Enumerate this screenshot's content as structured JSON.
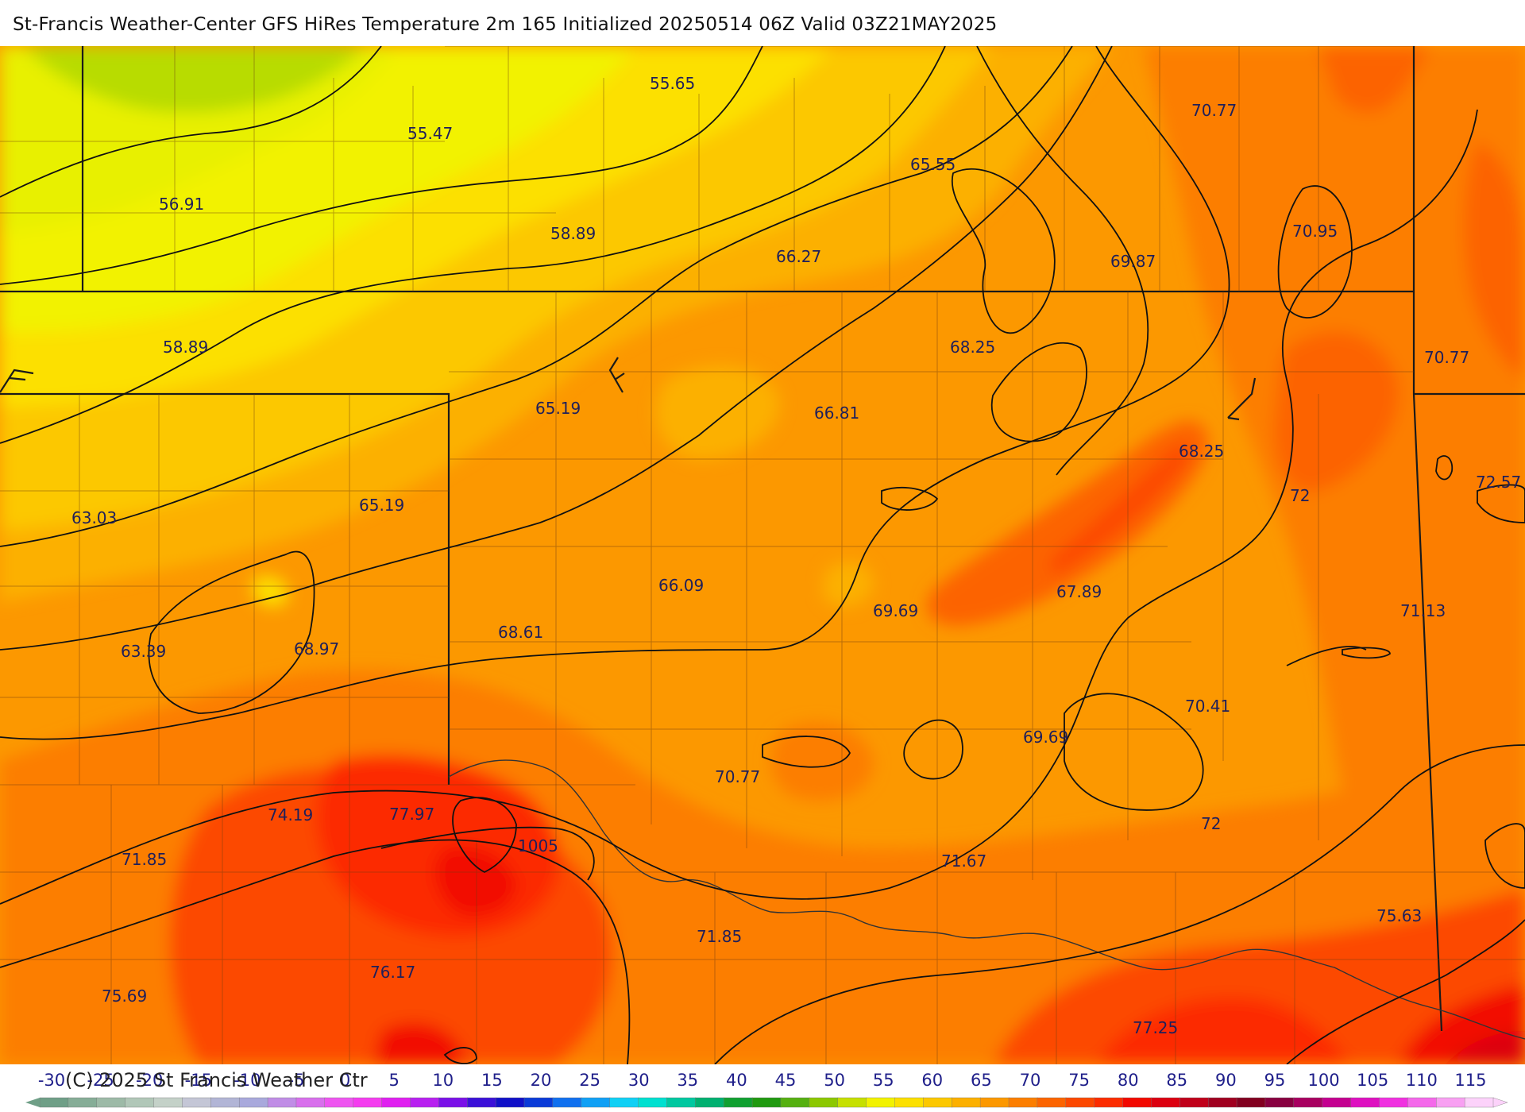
{
  "title": "St-Francis Weather-Center GFS HiRes Temperature 2m  165 Initialized 20250514 06Z Valid 03Z21MAY2025",
  "copyright": "(C) 2025 St Francis Weather Ctr",
  "map": {
    "temperature_labels": [
      "55.65",
      "55.47",
      "56.91",
      "58.89",
      "65.55",
      "66.27",
      "70.77",
      "70.95",
      "69.87",
      "58.89",
      "68.25",
      "70.77",
      "65.19",
      "66.81",
      "68.25",
      "72",
      "72.57",
      "63.03",
      "65.19",
      "66.09",
      "69.69",
      "67.89",
      "71.13",
      "63.39",
      "68.97",
      "68.61",
      "70.41",
      "69.69",
      "70.77",
      "74.19",
      "77.97",
      "1005",
      "72",
      "71.85",
      "71.67",
      "71.85",
      "75.63",
      "75.69",
      "76.17",
      "77.25"
    ]
  },
  "legend": {
    "ticks": [
      "-30",
      "-25",
      "-20",
      "-15",
      "-10",
      "-5",
      "0",
      "5",
      "10",
      "15",
      "20",
      "25",
      "30",
      "35",
      "40",
      "45",
      "50",
      "55",
      "60",
      "65",
      "70",
      "75",
      "80",
      "85",
      "90",
      "95",
      "100",
      "105",
      "110",
      "115"
    ],
    "colors": [
      "#6f9f87",
      "#86ad97",
      "#9dbaa7",
      "#b1c7b8",
      "#c4d1c8",
      "#c4c6d6",
      "#b2b5d6",
      "#a9a9dc",
      "#c08de6",
      "#d86fec",
      "#ee55f0",
      "#f43cef",
      "#e020f0",
      "#b820f0",
      "#7a10e8",
      "#3a10d8",
      "#1010c8",
      "#0a3ad8",
      "#1070ef",
      "#10a0f5",
      "#10d0f5",
      "#00e0d0",
      "#00c8a0",
      "#00b070",
      "#10a030",
      "#209a10",
      "#55b010",
      "#8cc800",
      "#c6e000",
      "#f2f200",
      "#fce000",
      "#fcc800",
      "#fcb000",
      "#fc9800",
      "#fc7e00",
      "#fc6400",
      "#fc4800",
      "#fc2c00",
      "#f20800",
      "#dc0010",
      "#c0001a",
      "#a00020",
      "#820020",
      "#880040",
      "#a80060",
      "#c40090",
      "#de10c0",
      "#f030e0",
      "#f468ea",
      "#f8a0f2",
      "#fcd2fa"
    ]
  }
}
